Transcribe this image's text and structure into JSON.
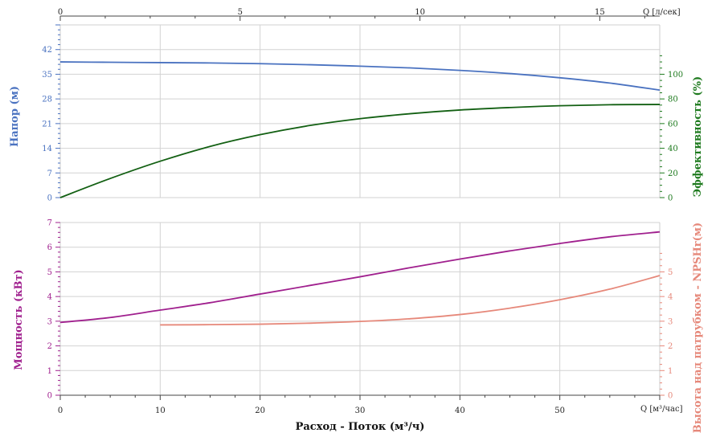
{
  "chart_data": {
    "type": "line",
    "xlabel": "Расход - Поток (м³/ч)",
    "x_unit_label": "Q [м³/час]",
    "top_axis_unit_label": "Q [л/сек]",
    "x_range": [
      0,
      60
    ],
    "top_axis_range": [
      0,
      16.667
    ],
    "x_ticks": [
      "0",
      "10",
      "20",
      "30",
      "40",
      "50"
    ],
    "top_ticks": [
      "0",
      "5",
      "10",
      "15"
    ],
    "grid": true,
    "panels": [
      {
        "name": "upper",
        "left_axis": {
          "label": "Напор (м)",
          "color": "#4a72c0",
          "range": [
            0,
            49
          ],
          "ticks": [
            "0",
            "7",
            "14",
            "21",
            "28",
            "35",
            "42"
          ]
        },
        "right_axis": {
          "label": "Эффективность (%)",
          "color": "#1e7a1e",
          "range": [
            0,
            140
          ],
          "ticks": [
            "0",
            "20",
            "40",
            "60",
            "80",
            "100"
          ]
        },
        "series": [
          {
            "axis": "left",
            "color": "#4a72c0",
            "x": [
              0,
              5,
              10,
              15,
              20,
              25,
              30,
              35,
              40,
              45,
              50,
              55,
              60
            ],
            "y": [
              38.5,
              38.4,
              38.3,
              38.2,
              38.0,
              37.7,
              37.3,
              36.8,
              36.1,
              35.2,
              34.0,
              32.5,
              30.5
            ]
          },
          {
            "axis": "right",
            "color": "#136013",
            "x": [
              0,
              5,
              10,
              15,
              20,
              25,
              30,
              35,
              40,
              45,
              50,
              55,
              60
            ],
            "y": [
              0,
              15.5,
              29.5,
              41.5,
              51,
              58.5,
              64,
              68,
              71,
              73,
              74.5,
              75.3,
              75.5
            ]
          }
        ]
      },
      {
        "name": "lower",
        "left_axis": {
          "label": "Мощность (кВт)",
          "color": "#a0208e",
          "range": [
            0,
            7
          ],
          "ticks": [
            "0",
            "1",
            "2",
            "3",
            "4",
            "5",
            "6",
            "7"
          ]
        },
        "right_axis": {
          "label": "Высота над патрубком - NPSHr(м)",
          "color": "#e6887a",
          "range": [
            0,
            7
          ],
          "ticks": [
            "0",
            "1",
            "2",
            "3",
            "4",
            "5"
          ]
        },
        "series": [
          {
            "axis": "left",
            "color": "#a0208e",
            "x": [
              0,
              5,
              10,
              15,
              20,
              25,
              30,
              35,
              40,
              45,
              50,
              55,
              60
            ],
            "y": [
              2.95,
              3.15,
              3.45,
              3.75,
              4.1,
              4.45,
              4.8,
              5.17,
              5.52,
              5.85,
              6.15,
              6.42,
              6.62
            ]
          },
          {
            "axis": "right",
            "color": "#e6887a",
            "x": [
              10,
              15,
              20,
              25,
              30,
              35,
              40,
              45,
              50,
              55,
              60
            ],
            "y": [
              2.85,
              2.86,
              2.88,
              2.92,
              2.99,
              3.1,
              3.27,
              3.53,
              3.87,
              4.3,
              4.85
            ]
          }
        ]
      }
    ]
  }
}
